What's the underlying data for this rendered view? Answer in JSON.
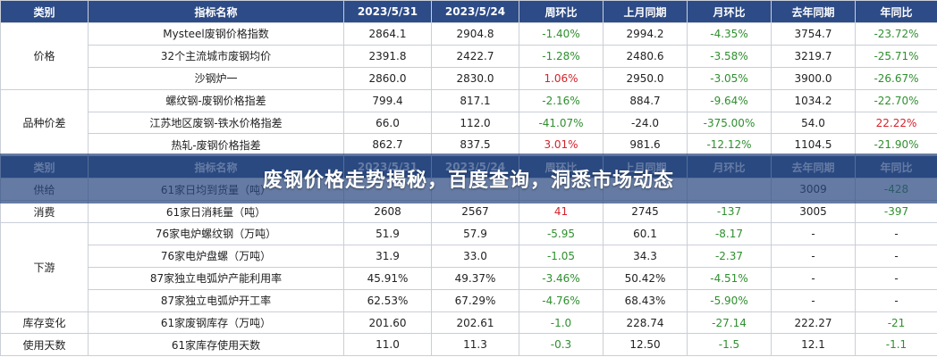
{
  "headers": [
    "类别",
    "指标名称",
    "2023/5/31",
    "2023/5/24",
    "周环比",
    "上月同期",
    "月环比",
    "去年同期",
    "年同比"
  ],
  "top": {
    "groups": [
      {
        "category": "价格",
        "rows": [
          {
            "name": "Mysteel废钢价格指数",
            "v1": "2864.1",
            "v2": "2904.8",
            "wow": "-1.40%",
            "wow_sign": "neg",
            "lm": "2994.2",
            "mom": "-4.35%",
            "mom_sign": "neg",
            "ly": "3754.7",
            "yoy": "-23.72%",
            "yoy_sign": "neg"
          },
          {
            "name": "32个主流城市废钢均价",
            "v1": "2391.8",
            "v2": "2422.7",
            "wow": "-1.28%",
            "wow_sign": "neg",
            "lm": "2480.6",
            "mom": "-3.58%",
            "mom_sign": "neg",
            "ly": "3219.7",
            "yoy": "-25.71%",
            "yoy_sign": "neg"
          },
          {
            "name": "沙钢炉一",
            "v1": "2860.0",
            "v2": "2830.0",
            "wow": "1.06%",
            "wow_sign": "pos",
            "lm": "2950.0",
            "mom": "-3.05%",
            "mom_sign": "neg",
            "ly": "3900.0",
            "yoy": "-26.67%",
            "yoy_sign": "neg"
          }
        ]
      },
      {
        "category": "品种价差",
        "rows": [
          {
            "name": "螺纹钢-废钢价格指差",
            "v1": "799.4",
            "v2": "817.1",
            "wow": "-2.16%",
            "wow_sign": "neg",
            "lm": "884.7",
            "mom": "-9.64%",
            "mom_sign": "neg",
            "ly": "1034.2",
            "yoy": "-22.70%",
            "yoy_sign": "neg"
          },
          {
            "name": "江苏地区废钢-铁水价格指差",
            "v1": "66.0",
            "v2": "112.0",
            "wow": "-41.07%",
            "wow_sign": "neg",
            "lm": "-24.0",
            "mom": "-375.00%",
            "mom_sign": "neg",
            "ly": "54.0",
            "yoy": "22.22%",
            "yoy_sign": "pos"
          },
          {
            "name": "热轧-废钢价格指差",
            "v1": "862.7",
            "v2": "837.5",
            "wow": "3.01%",
            "wow_sign": "pos",
            "lm": "981.6",
            "mom": "-12.12%",
            "mom_sign": "neg",
            "ly": "1104.5",
            "yoy": "-21.90%",
            "yoy_sign": "neg"
          }
        ]
      }
    ]
  },
  "bottom": {
    "groups": [
      {
        "category": "供给",
        "rows": [
          {
            "name": "61家日均到货量（吨）",
            "v1": "",
            "v2": "",
            "wow": "",
            "wow_sign": "neg",
            "lm": "",
            "mom": "",
            "mom_sign": "neg",
            "ly": "3009",
            "yoy": "-428",
            "yoy_sign": "neg"
          }
        ]
      },
      {
        "category": "消费",
        "rows": [
          {
            "name": "61家日消耗量（吨）",
            "v1": "2608",
            "v2": "2567",
            "wow": "41",
            "wow_sign": "pos",
            "lm": "2745",
            "mom": "-137",
            "mom_sign": "neg",
            "ly": "3005",
            "yoy": "-397",
            "yoy_sign": "neg"
          }
        ]
      },
      {
        "category": "下游",
        "rows": [
          {
            "name": "76家电炉螺纹钢（万吨）",
            "v1": "51.9",
            "v2": "57.9",
            "wow": "-5.95",
            "wow_sign": "neg",
            "lm": "60.1",
            "mom": "-8.17",
            "mom_sign": "neg",
            "ly": "-",
            "yoy": "-",
            "yoy_sign": "none"
          },
          {
            "name": "76家电炉盘螺（万吨）",
            "v1": "31.9",
            "v2": "33.0",
            "wow": "-1.05",
            "wow_sign": "neg",
            "lm": "34.3",
            "mom": "-2.37",
            "mom_sign": "neg",
            "ly": "-",
            "yoy": "-",
            "yoy_sign": "none"
          },
          {
            "name": "87家独立电弧炉产能利用率",
            "v1": "45.91%",
            "v2": "49.37%",
            "wow": "-3.46%",
            "wow_sign": "neg",
            "lm": "50.42%",
            "mom": "-4.51%",
            "mom_sign": "neg",
            "ly": "-",
            "yoy": "-",
            "yoy_sign": "none"
          },
          {
            "name": "87家独立电弧炉开工率",
            "v1": "62.53%",
            "v2": "67.29%",
            "wow": "-4.76%",
            "wow_sign": "neg",
            "lm": "68.43%",
            "mom": "-5.90%",
            "mom_sign": "neg",
            "ly": "-",
            "yoy": "-",
            "yoy_sign": "none"
          }
        ]
      },
      {
        "category": "库存变化",
        "rows": [
          {
            "name": "61家废钢库存（万吨）",
            "v1": "201.60",
            "v2": "202.61",
            "wow": "-1.0",
            "wow_sign": "neg",
            "lm": "228.74",
            "mom": "-27.14",
            "mom_sign": "neg",
            "ly": "222.27",
            "yoy": "-21",
            "yoy_sign": "neg"
          }
        ]
      },
      {
        "category": "使用天数",
        "rows": [
          {
            "name": "61家库存使用天数",
            "v1": "11.0",
            "v2": "11.3",
            "wow": "-0.3",
            "wow_sign": "neg",
            "lm": "12.50",
            "mom": "-1.5",
            "mom_sign": "neg",
            "ly": "12.1",
            "yoy": "-1.1",
            "yoy_sign": "neg"
          }
        ]
      }
    ]
  },
  "banner_title": "废钢价格走势揭秘，百度查询，洞悉市场动态"
}
